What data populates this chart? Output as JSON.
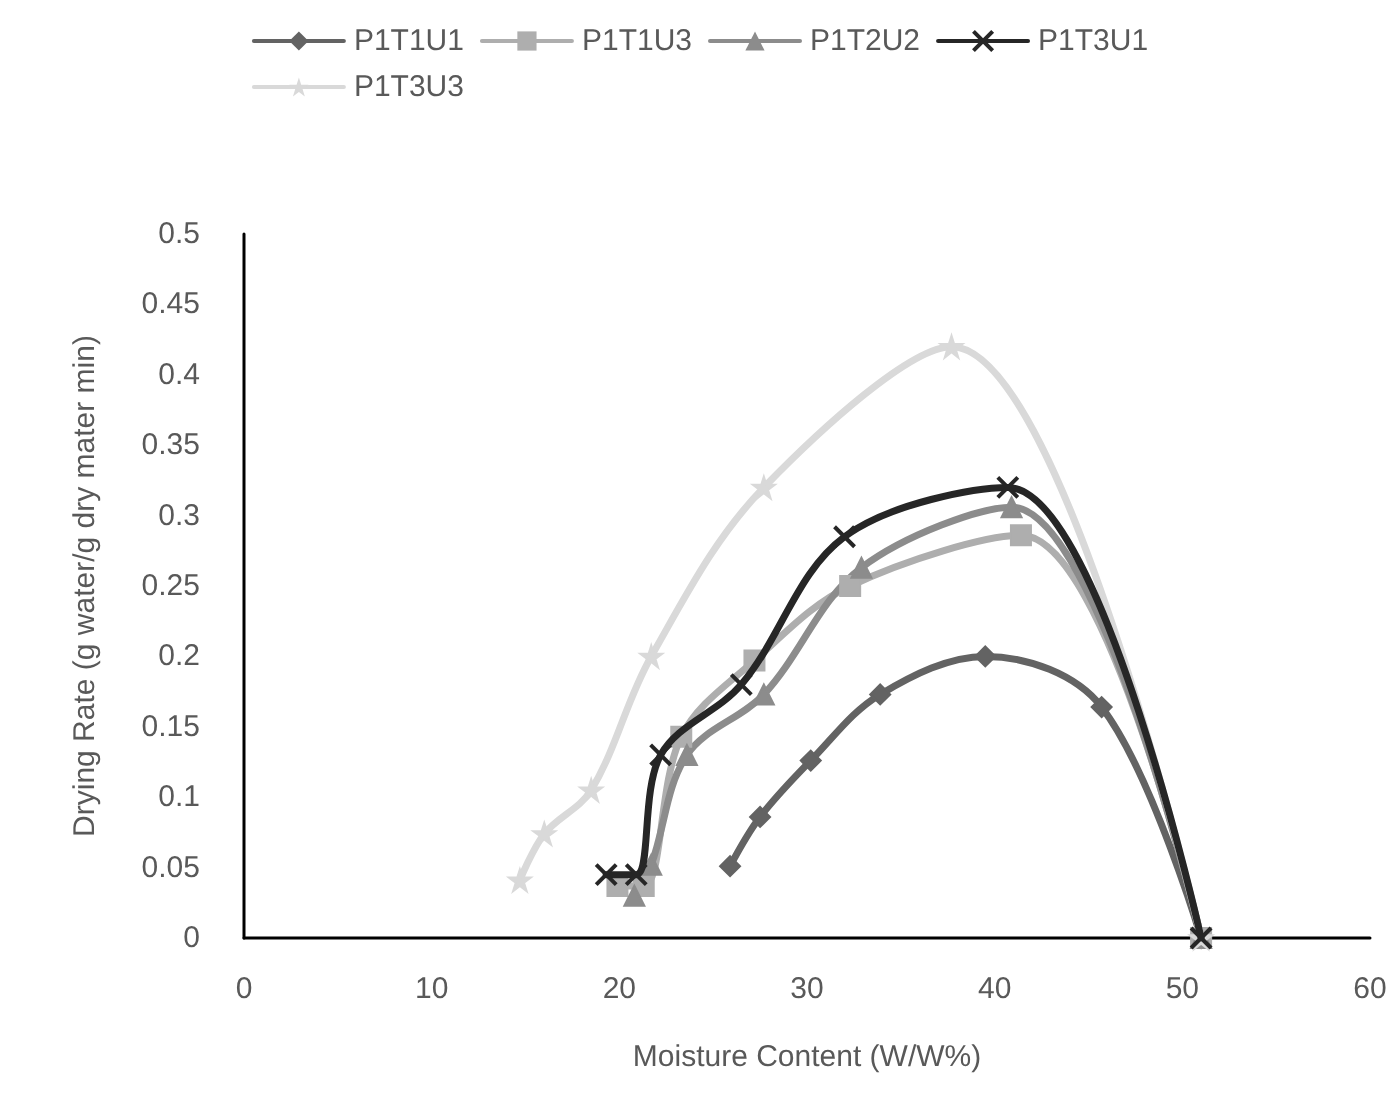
{
  "chart_data": {
    "type": "line",
    "xlabel": "Moisture Content (W/W%)",
    "ylabel": "Drying Rate (g water/g dry mater min)",
    "xlim": [
      0,
      60
    ],
    "xticks": [
      0,
      10,
      20,
      30,
      40,
      50,
      60
    ],
    "ylim": [
      0,
      0.5
    ],
    "yticks": [
      0,
      0.05,
      0.1,
      0.15,
      0.2,
      0.25,
      0.3,
      0.35,
      0.4,
      0.45,
      0.5
    ],
    "grid": false,
    "legend": "top",
    "line_style": "solid",
    "series": [
      {
        "name": "P1T1U1",
        "color": "#636363",
        "marker": "diamond",
        "x": [
          25.9,
          27.5,
          30.2,
          33.9,
          39.5,
          45.7,
          51
        ],
        "values": [
          0.051,
          0.086,
          0.126,
          0.173,
          0.2,
          0.164,
          0
        ]
      },
      {
        "name": "P1T1U3",
        "color": "#aeaeae",
        "marker": "square",
        "x": [
          19.9,
          21.3,
          23.3,
          27.2,
          32.3,
          41.4,
          51
        ],
        "values": [
          0.037,
          0.037,
          0.143,
          0.197,
          0.25,
          0.286,
          0
        ]
      },
      {
        "name": "P1T2U2",
        "color": "#8c8c8c",
        "marker": "triangle",
        "x": [
          20.8,
          21.7,
          23.6,
          27.7,
          32.9,
          40.9,
          51
        ],
        "values": [
          0.03,
          0.052,
          0.13,
          0.173,
          0.263,
          0.306,
          0
        ]
      },
      {
        "name": "P1T3U1",
        "color": "#262626",
        "marker": "cross",
        "x": [
          19.3,
          20.9,
          22.2,
          26.5,
          32.0,
          40.7,
          51
        ],
        "values": [
          0.045,
          0.045,
          0.13,
          0.18,
          0.285,
          0.32,
          0
        ]
      },
      {
        "name": "P1T3U3",
        "color": "#d9d9d9",
        "marker": "star",
        "x": [
          14.7,
          16.0,
          18.5,
          21.7,
          27.7,
          37.7,
          51
        ],
        "values": [
          0.041,
          0.074,
          0.105,
          0.2,
          0.32,
          0.42,
          0
        ]
      }
    ]
  }
}
